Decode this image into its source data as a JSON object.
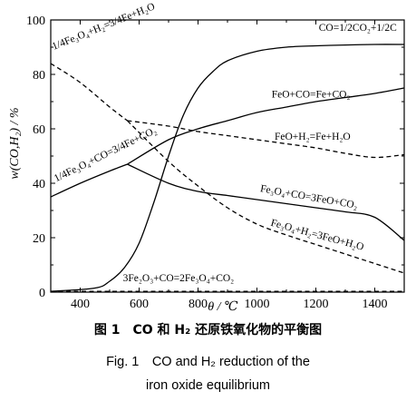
{
  "chart_data": {
    "type": "line",
    "xlabel": "θ / ℃",
    "ylabel": "w(CO,H₂) / %",
    "xlim": [
      300,
      1500
    ],
    "ylim": [
      0,
      100
    ],
    "xticks": [
      400,
      600,
      800,
      1000,
      1200,
      1400
    ],
    "yticks": [
      0,
      20,
      40,
      60,
      80,
      100
    ],
    "series": [
      {
        "name": "CO=1/2CO₂+1/2C",
        "style": "solid",
        "x": [
          300,
          450,
          500,
          550,
          600,
          650,
          700,
          750,
          800,
          850,
          900,
          1000,
          1100,
          1200,
          1300,
          1400,
          1500
        ],
        "y": [
          0.3,
          1.5,
          4,
          9,
          18,
          33,
          50,
          65,
          75,
          81,
          85,
          88.5,
          90,
          90.5,
          90.8,
          91,
          91
        ]
      },
      {
        "name": "FeO+CO=Fe+CO₂",
        "style": "solid",
        "x": [
          560,
          700,
          800,
          900,
          1000,
          1100,
          1200,
          1300,
          1400,
          1500
        ],
        "y": [
          47,
          56,
          60,
          63,
          66,
          68,
          70,
          71.5,
          73,
          75
        ]
      },
      {
        "name": "1/4Fe₃O₄+CO=3/4Fe+CO₂",
        "style": "solid",
        "x": [
          300,
          400,
          500,
          560
        ],
        "y": [
          35,
          40,
          44.5,
          47
        ]
      },
      {
        "name": "Fe₃O₄+CO=3FeO+CO₂",
        "style": "solid",
        "x": [
          560,
          700,
          800,
          900,
          1000,
          1100,
          1200,
          1300,
          1400,
          1500
        ],
        "y": [
          47,
          40,
          37,
          35.5,
          34,
          32.5,
          31,
          29.5,
          27.5,
          19
        ]
      },
      {
        "name": "1/4Fe₃O₄+H₂=3/4Fe+H₂O",
        "style": "dashed",
        "x": [
          300,
          400,
          500,
          560
        ],
        "y": [
          84,
          77,
          68,
          63
        ]
      },
      {
        "name": "FeO+H₂=Fe+H₂O",
        "style": "dashed",
        "x": [
          560,
          700,
          800,
          900,
          1000,
          1100,
          1200,
          1300,
          1400,
          1500
        ],
        "y": [
          63,
          61,
          59,
          57.5,
          56,
          54.5,
          53,
          51,
          49.5,
          50.5
        ]
      },
      {
        "name": "Fe₃O₄+H₂=3FeO+H₂O",
        "style": "dashed",
        "x": [
          560,
          700,
          800,
          900,
          1000,
          1100,
          1200,
          1300,
          1400,
          1500
        ],
        "y": [
          63,
          48,
          39,
          31,
          25,
          21,
          17.5,
          14,
          10.5,
          7
        ]
      },
      {
        "name": "3Fe₂O₃+CO=2Fe₃O₄+CO₂",
        "style": "dashed",
        "x": [
          300,
          1500
        ],
        "y": [
          0.3,
          0.3
        ]
      }
    ],
    "annotations": [
      {
        "text": "CO=1/2CO₂+1/2C",
        "x": 1210,
        "y": 96
      },
      {
        "text": "1/4Fe₃O₄+H₂=3/4Fe+H₂O",
        "x": 310,
        "y": 89,
        "rotate": -22
      },
      {
        "text": "FeO+CO=Fe+CO₂",
        "x": 1050,
        "y": 71.5
      },
      {
        "text": "1/4Fe₃O₄+CO=3/4Fe+CO₂",
        "x": 318,
        "y": 40.5,
        "rotate": -26
      },
      {
        "text": "FeO+H₂=Fe+H₂O",
        "x": 1060,
        "y": 56
      },
      {
        "text": "Fe₃O₄+CO=3FeO+CO₂",
        "x": 1010,
        "y": 37,
        "rotate": 10
      },
      {
        "text": "Fe₃O₄+H₂=3FeO+H₂O",
        "x": 1045,
        "y": 24.5,
        "rotate": 15
      },
      {
        "text": "3Fe₂O₃+CO=2Fe₃O₄+CO₂",
        "x": 545,
        "y": 4
      }
    ]
  },
  "caption": {
    "cn": "图 1　CO 和 H₂ 还原铁氧化物的平衡图",
    "en_line1": "Fig. 1　CO and H₂ reduction of the",
    "en_line2": "iron oxide equilibrium"
  }
}
